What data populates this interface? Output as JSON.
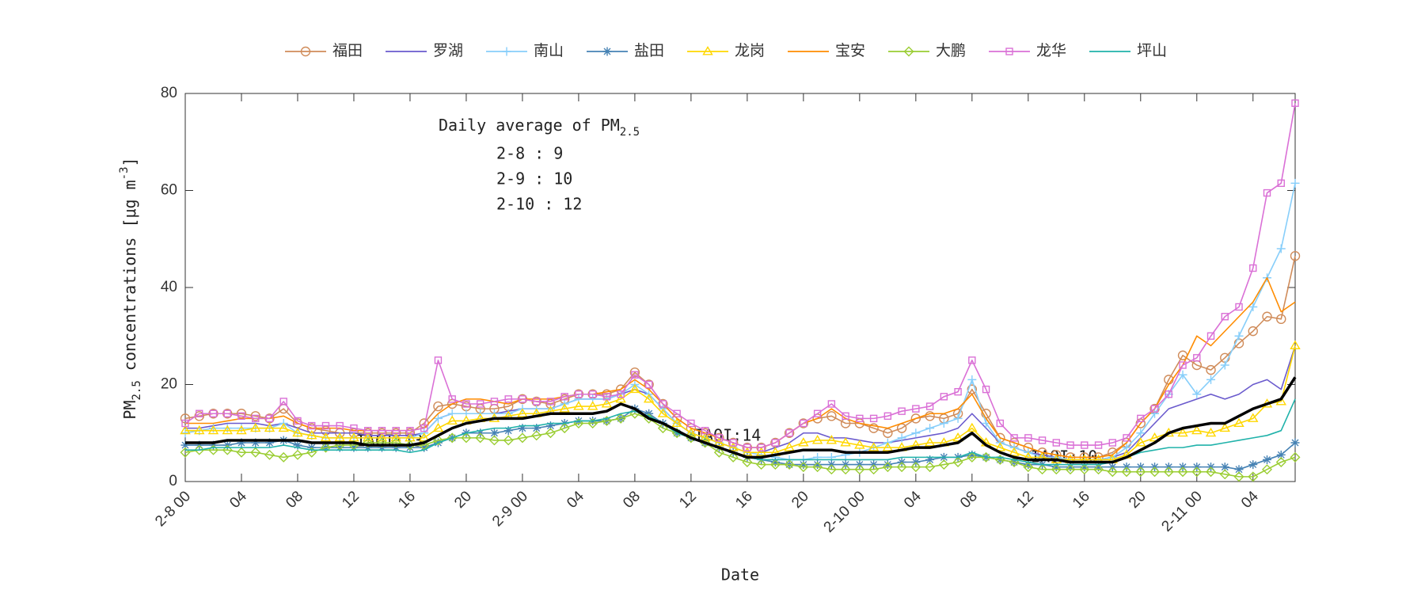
{
  "chart_data": {
    "type": "line",
    "xlabel": "Date",
    "ylabel": [
      {
        "text": "PM"
      },
      {
        "text": "2.5",
        "sub": true
      },
      {
        "text": " concentrations [μg m"
      },
      {
        "text": "-3",
        "sup": true
      },
      {
        "text": "]"
      }
    ],
    "annotation_title": [
      {
        "text": "Daily average of PM"
      },
      {
        "text": "2.5",
        "sub": true
      }
    ],
    "daily_averages": [
      "2-8 : 9",
      "2-9 : 10",
      "2-10 : 12"
    ],
    "iaqi_labels": [
      "IAQI:13",
      "IAQI:14",
      "IAQI:10"
    ],
    "x": [
      0,
      1,
      2,
      3,
      4,
      5,
      6,
      7,
      8,
      9,
      10,
      11,
      12,
      13,
      14,
      15,
      16,
      17,
      18,
      19,
      20,
      21,
      22,
      23,
      24,
      25,
      26,
      27,
      28,
      29,
      30,
      31,
      32,
      33,
      34,
      35,
      36,
      37,
      38,
      39,
      40,
      41,
      42,
      43,
      44,
      45,
      46,
      47,
      48,
      49,
      50,
      51,
      52,
      53,
      54,
      55,
      56,
      57,
      58,
      59,
      60,
      61,
      62,
      63,
      64,
      65,
      66,
      67,
      68,
      69,
      70,
      71,
      72,
      73,
      74,
      75,
      76,
      77,
      78,
      79
    ],
    "xlim": [
      0,
      79
    ],
    "xticks": [
      {
        "value": 0,
        "label": "2-8 00"
      },
      {
        "value": 4,
        "label": "04"
      },
      {
        "value": 8,
        "label": "08"
      },
      {
        "value": 12,
        "label": "12"
      },
      {
        "value": 16,
        "label": "16"
      },
      {
        "value": 20,
        "label": "20"
      },
      {
        "value": 24,
        "label": "2-9 00"
      },
      {
        "value": 28,
        "label": "04"
      },
      {
        "value": 32,
        "label": "08"
      },
      {
        "value": 36,
        "label": "12"
      },
      {
        "value": 40,
        "label": "16"
      },
      {
        "value": 44,
        "label": "20"
      },
      {
        "value": 48,
        "label": "2-10 00"
      },
      {
        "value": 52,
        "label": "04"
      },
      {
        "value": 56,
        "label": "08"
      },
      {
        "value": 60,
        "label": "12"
      },
      {
        "value": 64,
        "label": "16"
      },
      {
        "value": 68,
        "label": "20"
      },
      {
        "value": 72,
        "label": "2-11 00"
      },
      {
        "value": 76,
        "label": "04"
      }
    ],
    "ylim": [
      0,
      80
    ],
    "yticks": [
      0,
      20,
      40,
      60,
      80
    ],
    "legend": "top",
    "series": [
      {
        "name": "福田",
        "color": "#d08c5a",
        "marker": "circle",
        "values": [
          13,
          13.5,
          14,
          14,
          14,
          13.5,
          13,
          15,
          12,
          11,
          10.5,
          10,
          10,
          10,
          10,
          10,
          10,
          12,
          15.5,
          16,
          15.5,
          15,
          15,
          15.5,
          17,
          16.5,
          16,
          17,
          18,
          18,
          18,
          19,
          22.5,
          20,
          16,
          13,
          11,
          10,
          9,
          8,
          7,
          7,
          8,
          10,
          12,
          13,
          13.5,
          12,
          12,
          11,
          10,
          11,
          13,
          13.5,
          13,
          14,
          19,
          14,
          9,
          8,
          7,
          6,
          5.5,
          5,
          5,
          5,
          6,
          8,
          12,
          15,
          21,
          26,
          24,
          23,
          25.5,
          28.5,
          31,
          34,
          33.5,
          46.5
        ]
      },
      {
        "name": "罗湖",
        "color": "#6a5acd",
        "values": [
          11,
          11,
          11.5,
          12,
          12,
          12,
          11.5,
          12,
          11,
          10,
          10,
          10,
          10,
          9.5,
          9.5,
          9.5,
          9.5,
          10,
          13,
          14,
          14,
          14,
          14,
          14.5,
          15,
          15,
          15,
          16,
          17,
          17,
          17,
          18,
          19,
          18,
          15,
          12,
          10,
          9,
          8,
          7,
          6,
          6,
          7,
          8,
          10,
          10,
          9,
          9,
          8.5,
          8,
          8,
          8.5,
          9,
          9.5,
          10,
          11,
          14,
          11,
          8,
          7,
          6,
          5.5,
          5,
          4.5,
          4.5,
          4.5,
          5,
          6,
          9,
          12,
          15,
          16,
          17,
          18,
          17,
          18,
          20,
          21,
          19,
          28
        ]
      },
      {
        "name": "南山",
        "color": "#87cefa",
        "marker": "plus",
        "values": [
          10,
          10.5,
          11,
          11,
          11,
          11,
          11,
          12,
          10,
          9.5,
          9,
          9,
          9,
          9,
          9,
          9,
          9,
          10,
          13,
          14,
          14,
          14,
          14,
          14,
          15,
          15,
          15,
          16,
          17,
          17,
          17,
          18,
          20,
          18,
          15,
          12,
          10,
          9,
          8,
          7,
          6,
          5.5,
          5,
          4.5,
          4.5,
          5,
          5,
          5.5,
          6,
          7,
          8,
          9,
          10,
          11,
          12,
          13,
          21,
          12,
          8,
          7,
          6,
          5,
          5,
          4.5,
          4.5,
          4.5,
          5,
          7,
          10,
          14,
          18,
          22,
          18,
          21,
          24,
          30,
          36,
          42,
          48,
          61.5
        ]
      },
      {
        "name": "盐田",
        "color": "#4682b4",
        "marker": "asterisk",
        "values": [
          7.5,
          7.5,
          7.5,
          7.5,
          8,
          8,
          8,
          8.5,
          7.5,
          7,
          7,
          7,
          7,
          7,
          7,
          7,
          7,
          7,
          8,
          9,
          10,
          10,
          10,
          10.5,
          11,
          11,
          11.5,
          12,
          12.5,
          12.5,
          12.5,
          13,
          15,
          14,
          12,
          10,
          9,
          8,
          7,
          6,
          5,
          4.5,
          4,
          3.5,
          3.5,
          3.5,
          3.5,
          3.5,
          3.5,
          3.5,
          3.5,
          4,
          4,
          4.5,
          5,
          5,
          5.5,
          5,
          4.5,
          4,
          3.5,
          3.5,
          3,
          3,
          3,
          3,
          3,
          3,
          3,
          3,
          3,
          3,
          3,
          3,
          3,
          2.5,
          3.5,
          4.5,
          5.5,
          8
        ]
      },
      {
        "name": "龙岗",
        "color": "#ffd700",
        "marker": "triangle",
        "values": [
          10.5,
          10.5,
          10.5,
          10.5,
          10.5,
          11,
          11,
          11,
          10,
          9.5,
          9,
          9,
          9,
          9,
          9,
          9,
          9,
          9,
          11,
          12.5,
          12.5,
          13,
          13,
          13.5,
          14,
          14,
          14.5,
          15,
          15.5,
          15.5,
          16,
          17,
          19,
          17,
          14,
          12,
          10,
          9,
          8,
          7,
          6,
          6,
          6,
          7,
          8,
          8.5,
          8.5,
          8,
          7.5,
          7,
          7,
          7,
          7.5,
          8,
          8,
          9,
          11,
          8,
          7,
          6,
          5,
          5,
          4.5,
          4.5,
          4.5,
          4.5,
          4.5,
          5.5,
          8,
          9,
          10,
          10,
          10.5,
          10,
          11,
          12,
          13,
          16,
          16.5,
          28
        ]
      },
      {
        "name": "宝安",
        "color": "#ff8c00",
        "values": [
          12,
          12,
          12,
          12.5,
          13,
          13,
          13,
          13.5,
          12,
          11,
          11,
          11,
          10.5,
          10.5,
          10.5,
          10.5,
          10.5,
          11,
          14,
          16,
          17,
          17,
          16.5,
          16,
          17,
          17,
          17,
          17.5,
          18,
          18,
          18.5,
          19,
          21,
          19,
          16,
          13,
          11,
          10,
          9,
          8,
          7,
          7,
          8,
          10,
          12,
          13,
          15,
          13,
          12,
          11.5,
          11,
          12,
          13,
          14,
          14,
          15,
          18,
          13,
          9,
          8,
          7,
          6,
          5.5,
          5,
          5,
          5,
          5.5,
          8,
          12,
          15,
          20,
          24,
          30,
          28,
          31,
          34,
          37,
          42,
          35,
          37
        ]
      },
      {
        "name": "大鹏",
        "color": "#9acd32",
        "marker": "diamond",
        "values": [
          6,
          6.5,
          6.5,
          6.5,
          6,
          6,
          5.5,
          5,
          5.5,
          6,
          7,
          7.5,
          7.5,
          8,
          8,
          8,
          7.5,
          7.5,
          8.5,
          9,
          9,
          9,
          8.5,
          8.5,
          9,
          9.5,
          10,
          11,
          12,
          12,
          12.5,
          13,
          14,
          13,
          11,
          10,
          9,
          8,
          6,
          5,
          4,
          3.5,
          3.5,
          3.5,
          3,
          3,
          2.5,
          2.5,
          2.5,
          2.5,
          3,
          3,
          3,
          3,
          3.5,
          4,
          5,
          5,
          4.5,
          4,
          3,
          2.5,
          2.5,
          2.5,
          2.5,
          2.5,
          2,
          2,
          2,
          2,
          2,
          2,
          2,
          2,
          1.5,
          1,
          1,
          2.5,
          4,
          5
        ]
      },
      {
        "name": "龙华",
        "color": "#da70d6",
        "marker": "square",
        "values": [
          12,
          14,
          14,
          14,
          13.5,
          13,
          13,
          16.5,
          12.5,
          11.5,
          11.5,
          11.5,
          11,
          10.5,
          10.5,
          10.5,
          10.5,
          11,
          25,
          17,
          16,
          16,
          16.5,
          17,
          17,
          16.5,
          16.5,
          17.5,
          18,
          18,
          17.5,
          18,
          22,
          20,
          16,
          14,
          12,
          10.5,
          9,
          8,
          7,
          7,
          8,
          10,
          12,
          14,
          16,
          13.5,
          13,
          13,
          13.5,
          14.5,
          15,
          15.5,
          17.5,
          18.5,
          25,
          19,
          12,
          9,
          9,
          8.5,
          8,
          7.5,
          7.5,
          7.5,
          8,
          9,
          13,
          15,
          18,
          24,
          25.5,
          30,
          34,
          36,
          44,
          59.5,
          61.5,
          78
        ]
      },
      {
        "name": "坪山",
        "color": "#20b2aa",
        "values": [
          6.5,
          6.5,
          7,
          7,
          7,
          7,
          7,
          7.5,
          7,
          6.5,
          6.5,
          6.5,
          6.5,
          6.5,
          6.5,
          6.5,
          6,
          6.5,
          8,
          9,
          10,
          10.5,
          11,
          11,
          11.5,
          11.5,
          12,
          12,
          12.5,
          12.5,
          13,
          14,
          14.5,
          13.5,
          12,
          10,
          9,
          8,
          7,
          6,
          5,
          4.5,
          4.5,
          4.5,
          4.5,
          4.5,
          4.5,
          4.5,
          4.5,
          4.5,
          4.5,
          5,
          5,
          5,
          5,
          5,
          6,
          5,
          5,
          4.5,
          4,
          3.5,
          3.5,
          3.5,
          3.5,
          3.5,
          4,
          5,
          6,
          6.5,
          7,
          7,
          7.5,
          7.5,
          8,
          8.5,
          9,
          9.5,
          10.5,
          17
        ]
      },
      {
        "color": "#000000",
        "values": [
          8,
          8,
          8,
          8.5,
          8.5,
          8.5,
          8.5,
          8.5,
          8.5,
          8,
          8,
          8,
          8,
          7.5,
          7.5,
          7.5,
          7.5,
          8,
          9.5,
          11,
          12,
          12.5,
          13,
          13,
          13,
          13.5,
          14,
          14,
          14,
          14,
          14.5,
          16,
          15,
          13,
          12,
          10.5,
          9,
          8,
          7,
          6,
          5,
          5,
          5.5,
          6,
          6.5,
          6.5,
          6.5,
          6,
          6,
          6,
          6,
          6.5,
          7,
          7,
          7.5,
          8,
          10,
          7.5,
          6,
          5,
          4.5,
          4.5,
          4.5,
          4,
          4,
          4,
          4,
          5,
          6.5,
          8,
          10,
          11,
          11.5,
          12,
          12,
          13.5,
          15,
          16,
          17,
          21.5
        ]
      }
    ]
  }
}
